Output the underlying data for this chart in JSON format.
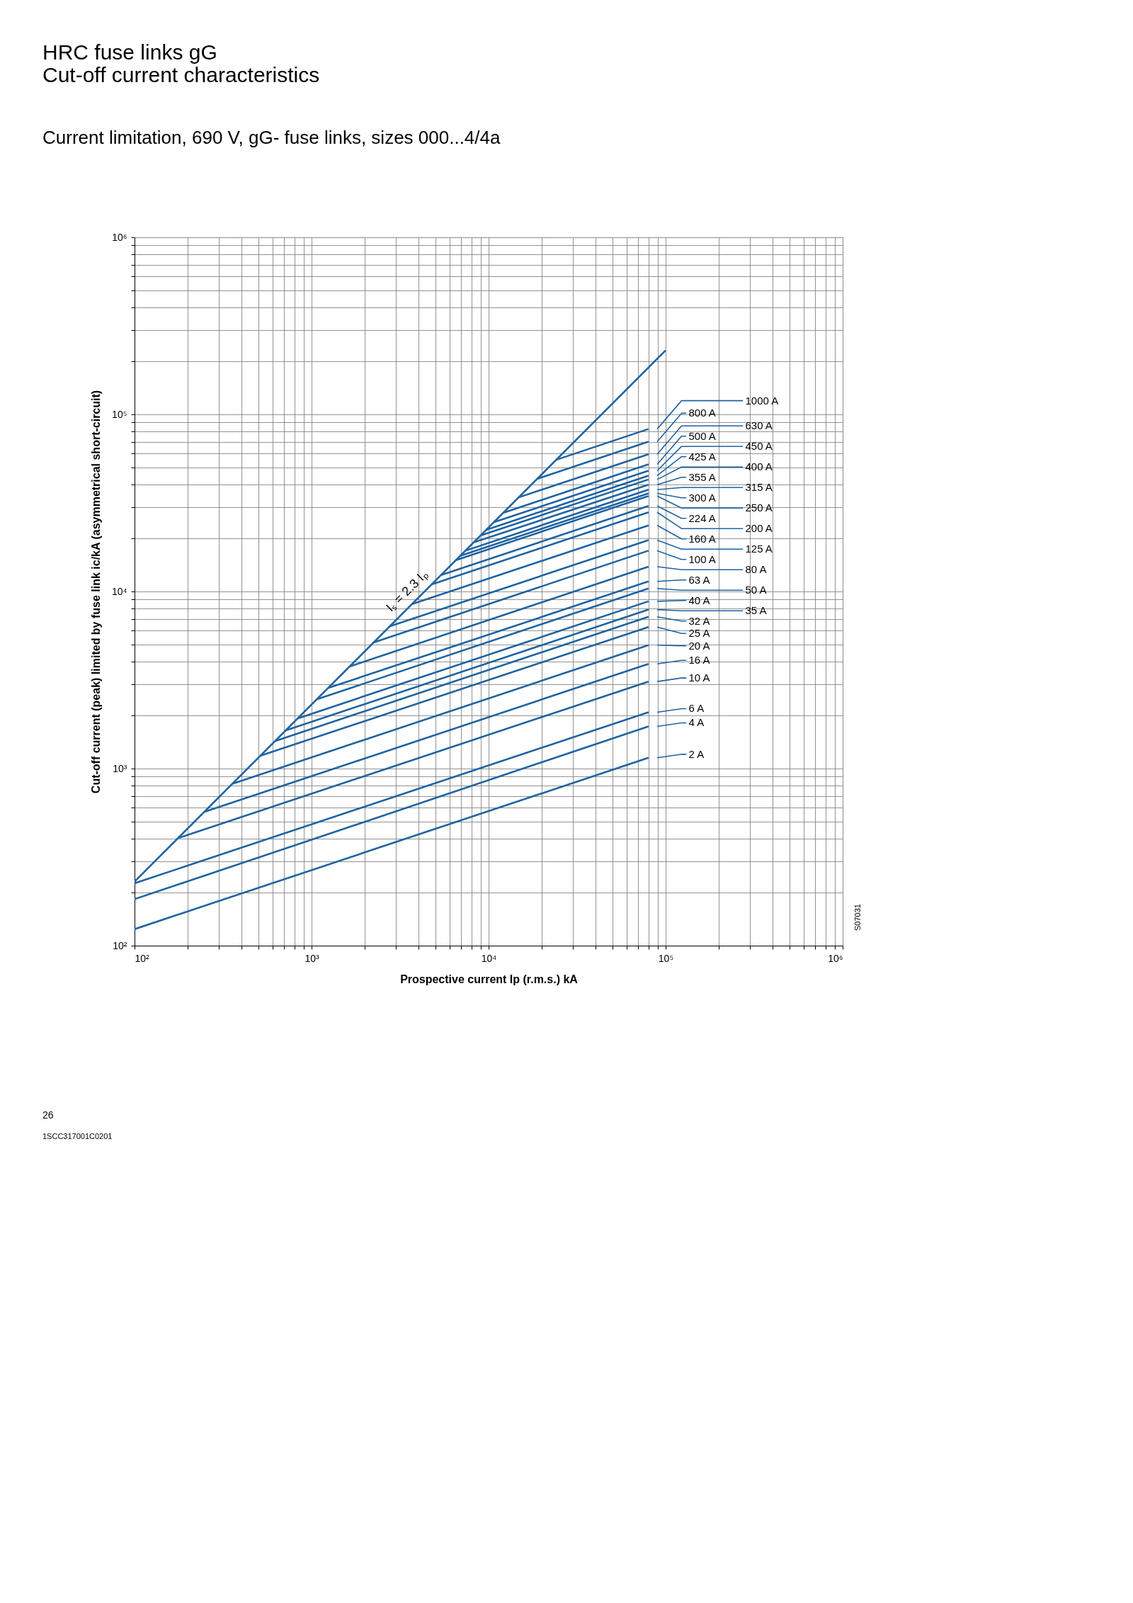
{
  "chart_data": {
    "type": "line",
    "title": "HRC fuse links gG\nCut-off current characteristics",
    "subtitle": "Current limitation, 690 V, gG- fuse links, sizes 000...4/4a",
    "xlabel": "Prospective current Ip (r.m.s.) kA",
    "ylabel": "Cut-off current (peak) limited by fuse link ic/kA (asymmetrical short-circuit)",
    "log": "xy",
    "grid": true,
    "legend": "right",
    "xlim": [
      100,
      1000000
    ],
    "ylim": [
      100,
      1000000
    ],
    "xticks": [
      {
        "value": 100,
        "label": "10²"
      },
      {
        "value": 200,
        "label": null
      },
      {
        "value": 300,
        "label": null
      },
      {
        "value": 400,
        "label": null
      },
      {
        "value": 500,
        "label": null
      },
      {
        "value": 600,
        "label": null
      },
      {
        "value": 700,
        "label": null
      },
      {
        "value": 800,
        "label": null
      },
      {
        "value": 900,
        "label": null
      },
      {
        "value": 1000,
        "label": "10³"
      },
      {
        "value": 2000,
        "label": null
      },
      {
        "value": 3000,
        "label": null
      },
      {
        "value": 4000,
        "label": null
      },
      {
        "value": 5000,
        "label": null
      },
      {
        "value": 6000,
        "label": null
      },
      {
        "value": 7000,
        "label": null
      },
      {
        "value": 8000,
        "label": null
      },
      {
        "value": 9000,
        "label": null
      },
      {
        "value": 10000,
        "label": "10⁴"
      },
      {
        "value": 20000,
        "label": null
      },
      {
        "value": 30000,
        "label": null
      },
      {
        "value": 40000,
        "label": null
      },
      {
        "value": 50000,
        "label": null
      },
      {
        "value": 60000,
        "label": null
      },
      {
        "value": 70000,
        "label": null
      },
      {
        "value": 80000,
        "label": null
      },
      {
        "value": 90000,
        "label": null
      },
      {
        "value": 100000,
        "label": "10⁵"
      },
      {
        "value": 200000,
        "label": null
      },
      {
        "value": 300000,
        "label": null
      },
      {
        "value": 400000,
        "label": null
      },
      {
        "value": 500000,
        "label": null
      },
      {
        "value": 600000,
        "label": null
      },
      {
        "value": 700000,
        "label": null
      },
      {
        "value": 800000,
        "label": null
      },
      {
        "value": 900000,
        "label": null
      },
      {
        "value": 1000000,
        "label": "10⁶"
      }
    ],
    "yticks": [
      {
        "value": 100,
        "label": "10²"
      },
      {
        "value": 200,
        "label": null
      },
      {
        "value": 300,
        "label": null
      },
      {
        "value": 400,
        "label": null
      },
      {
        "value": 500,
        "label": null
      },
      {
        "value": 600,
        "label": null
      },
      {
        "value": 700,
        "label": null
      },
      {
        "value": 800,
        "label": null
      },
      {
        "value": 900,
        "label": null
      },
      {
        "value": 1000,
        "label": "10³"
      },
      {
        "value": 2000,
        "label": null
      },
      {
        "value": 3000,
        "label": null
      },
      {
        "value": 4000,
        "label": null
      },
      {
        "value": 5000,
        "label": null
      },
      {
        "value": 6000,
        "label": null
      },
      {
        "value": 7000,
        "label": null
      },
      {
        "value": 8000,
        "label": null
      },
      {
        "value": 9000,
        "label": null
      },
      {
        "value": 10000,
        "label": "10⁴"
      },
      {
        "value": 20000,
        "label": null
      },
      {
        "value": 30000,
        "label": null
      },
      {
        "value": 40000,
        "label": null
      },
      {
        "value": 50000,
        "label": null
      },
      {
        "value": 60000,
        "label": null
      },
      {
        "value": 70000,
        "label": null
      },
      {
        "value": 80000,
        "label": null
      },
      {
        "value": 90000,
        "label": null
      },
      {
        "value": 100000,
        "label": "10⁵"
      },
      {
        "value": 200000,
        "label": null
      },
      {
        "value": 300000,
        "label": null
      },
      {
        "value": 400000,
        "label": null
      },
      {
        "value": 500000,
        "label": null
      },
      {
        "value": 600000,
        "label": null
      },
      {
        "value": 700000,
        "label": null
      },
      {
        "value": 800000,
        "label": null
      },
      {
        "value": 900000,
        "label": null
      },
      {
        "value": 1000000,
        "label": "10⁶"
      }
    ],
    "series": [
      {
        "color": "#1f63a1",
        "x": [
          100,
          100000
        ],
        "values": [
          230,
          230000
        ]
      },
      {
        "name": "1000 A",
        "color": "#1f63a1",
        "x": [
          24100,
          80000
        ],
        "values": [
          55400,
          82700
        ]
      },
      {
        "name": "800 A",
        "color": "#1f63a1",
        "x": [
          18800,
          80000
        ],
        "values": [
          43200,
          70200
        ]
      },
      {
        "name": "630 A",
        "color": "#1f63a1",
        "x": [
          14800,
          80000
        ],
        "values": [
          34000,
          59600
        ]
      },
      {
        "name": "500 A",
        "color": "#1f63a1",
        "x": [
          12100,
          80000
        ],
        "values": [
          27800,
          52200
        ]
      },
      {
        "name": "450 A",
        "color": "#1f63a1",
        "x": [
          10700,
          80000
        ],
        "values": [
          24600,
          48100
        ]
      },
      {
        "name": "425 A",
        "color": "#1f63a1",
        "x": [
          9700,
          80000
        ],
        "values": [
          22300,
          45100
        ]
      },
      {
        "name": "400 A",
        "color": "#1f63a1",
        "x": [
          9000,
          80000
        ],
        "values": [
          20700,
          42900
        ]
      },
      {
        "name": "355 A",
        "color": "#1f63a1",
        "x": [
          8200,
          80000
        ],
        "values": [
          18900,
          40100
        ]
      },
      {
        "name": "315 A",
        "color": "#1f63a1",
        "x": [
          7400,
          80000
        ],
        "values": [
          17000,
          37600
        ]
      },
      {
        "name": "300 A",
        "color": "#1f63a1",
        "x": [
          6900,
          80000
        ],
        "values": [
          15900,
          35800
        ]
      },
      {
        "name": "250 A",
        "color": "#1f63a1",
        "x": [
          6500,
          80000
        ],
        "values": [
          15000,
          34600
        ]
      },
      {
        "name": "224 A",
        "color": "#1f63a1",
        "x": [
          5400,
          80000
        ],
        "values": [
          12400,
          30400
        ]
      },
      {
        "name": "200 A",
        "color": "#1f63a1",
        "x": [
          4800,
          80000
        ],
        "values": [
          11000,
          28000
        ]
      },
      {
        "name": "160 A",
        "color": "#1f63a1",
        "x": [
          3700,
          80000
        ],
        "values": [
          8500,
          23600
        ]
      },
      {
        "name": "125 A",
        "color": "#1f63a1",
        "x": [
          2760,
          80000
        ],
        "values": [
          6350,
          19500
        ]
      },
      {
        "name": "100 A",
        "color": "#1f63a1",
        "x": [
          2240,
          80000
        ],
        "values": [
          5150,
          17000
        ]
      },
      {
        "name": "80 A",
        "color": "#1f63a1",
        "x": [
          1640,
          80000
        ],
        "values": [
          3770,
          13800
        ]
      },
      {
        "name": "63 A",
        "color": "#1f63a1",
        "x": [
          1240,
          80000
        ],
        "values": [
          2850,
          11400
        ]
      },
      {
        "name": "50 A",
        "color": "#1f63a1",
        "x": [
          1070,
          80000
        ],
        "values": [
          2460,
          10400
        ]
      },
      {
        "name": "40 A",
        "color": "#1f63a1",
        "x": [
          836,
          80000
        ],
        "values": [
          1920,
          8800
        ]
      },
      {
        "name": "35 A",
        "color": "#1f63a1",
        "x": [
          711,
          80000
        ],
        "values": [
          1640,
          7900
        ]
      },
      {
        "name": "32 A",
        "color": "#1f63a1",
        "x": [
          621,
          80000
        ],
        "values": [
          1430,
          7200
        ]
      },
      {
        "name": "25 A",
        "color": "#1f63a1",
        "x": [
          512,
          80000
        ],
        "values": [
          1180,
          6300
        ]
      },
      {
        "name": "20 A",
        "color": "#1f63a1",
        "x": [
          357,
          80000
        ],
        "values": [
          820,
          4980
        ]
      },
      {
        "name": "16 A",
        "color": "#1f63a1",
        "x": [
          249,
          80000
        ],
        "values": [
          570,
          3900
        ]
      },
      {
        "name": "10 A",
        "color": "#1f63a1",
        "x": [
          176,
          80000
        ],
        "values": [
          405,
          3100
        ]
      },
      {
        "name": "6 A",
        "color": "#1f63a1",
        "x": [
          100,
          80000
        ],
        "values": [
          225,
          2080
        ]
      },
      {
        "name": "4 A",
        "color": "#1f63a1",
        "x": [
          100,
          80000
        ],
        "values": [
          183,
          1730
        ]
      },
      {
        "name": "2 A",
        "color": "#1f63a1",
        "x": [
          100,
          80000
        ],
        "values": [
          124,
          1150
        ]
      }
    ],
    "annotations": [
      "Iₛ = 2.3 Iₚ",
      "S07031",
      "26",
      "1SCC317001C0201"
    ]
  }
}
